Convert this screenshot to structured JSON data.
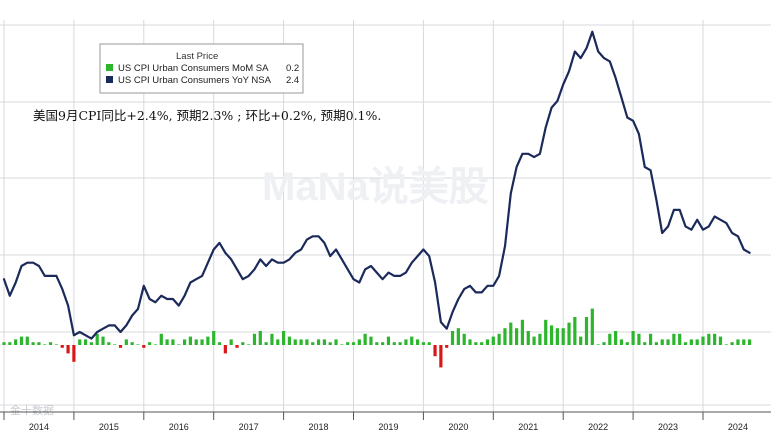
{
  "chart_data": {
    "type": "bar+line",
    "legend": {
      "title": "Last Price",
      "placement": "top-left",
      "entries": [
        {
          "label": "US CPI Urban Consumers MoM SA",
          "value": "0.2",
          "color": "#2db52d"
        },
        {
          "label": "US CPI Urban Consumers YoY NSA",
          "value": "2.4",
          "color": "#1b2a5a"
        }
      ]
    },
    "annotation": "美国9月CPI同比+2.4%, 预期2.3% ; 环比+0.2%, 预期0.1%.",
    "watermark": "MaNa说美股",
    "source_mark": "金十数据",
    "x_axis": {
      "ticks": [
        "2014",
        "2015",
        "2016",
        "2017",
        "2018",
        "2019",
        "2020",
        "2021",
        "2022",
        "2023",
        "2024"
      ]
    },
    "start_month": "2014-01",
    "grid": true,
    "colors": {
      "line": "#1b2a5a",
      "bar_pos": "#2db52d",
      "bar_neg": "#d81818",
      "grid": "#d5d9de"
    },
    "series": [
      {
        "name": "US CPI Urban Consumers YoY NSA",
        "kind": "line",
        "values": [
          1.6,
          1.1,
          1.5,
          2.0,
          2.1,
          2.1,
          2.0,
          1.7,
          1.7,
          1.7,
          1.3,
          0.8,
          -0.1,
          0.0,
          -0.1,
          -0.2,
          0.0,
          0.1,
          0.2,
          0.2,
          0.0,
          0.2,
          0.5,
          0.7,
          1.4,
          1.0,
          0.9,
          1.1,
          1.0,
          1.0,
          0.8,
          1.1,
          1.5,
          1.6,
          1.7,
          2.1,
          2.5,
          2.7,
          2.4,
          2.2,
          1.9,
          1.6,
          1.7,
          1.9,
          2.2,
          2.0,
          2.2,
          2.1,
          2.1,
          2.2,
          2.4,
          2.5,
          2.8,
          2.9,
          2.9,
          2.7,
          2.3,
          2.5,
          2.2,
          1.9,
          1.6,
          1.5,
          1.9,
          2.0,
          1.8,
          1.6,
          1.8,
          1.7,
          1.7,
          1.8,
          2.1,
          2.3,
          2.5,
          2.3,
          1.5,
          0.3,
          0.1,
          0.6,
          1.0,
          1.3,
          1.4,
          1.2,
          1.2,
          1.4,
          1.4,
          1.7,
          2.6,
          4.2,
          5.0,
          5.4,
          5.4,
          5.3,
          5.4,
          6.2,
          6.8,
          7.0,
          7.5,
          7.9,
          8.5,
          8.3,
          8.6,
          9.1,
          8.5,
          8.3,
          8.2,
          7.7,
          7.1,
          6.5,
          6.4,
          6.0,
          5.0,
          4.9,
          4.0,
          3.0,
          3.2,
          3.7,
          3.7,
          3.2,
          3.1,
          3.4,
          3.1,
          3.2,
          3.5,
          3.4,
          3.3,
          3.0,
          2.9,
          2.5,
          2.4
        ]
      },
      {
        "name": "US CPI Urban Consumers MoM SA",
        "kind": "bar",
        "values": [
          0.1,
          0.1,
          0.2,
          0.3,
          0.3,
          0.1,
          0.1,
          0.0,
          0.1,
          0.0,
          -0.1,
          -0.3,
          -0.6,
          0.2,
          0.2,
          0.1,
          0.4,
          0.3,
          0.1,
          0.0,
          -0.1,
          0.2,
          0.1,
          0.0,
          -0.1,
          0.1,
          0.0,
          0.4,
          0.2,
          0.2,
          0.0,
          0.2,
          0.3,
          0.2,
          0.2,
          0.3,
          0.5,
          0.1,
          -0.3,
          0.2,
          -0.1,
          0.1,
          0.0,
          0.4,
          0.5,
          0.1,
          0.4,
          0.2,
          0.5,
          0.3,
          0.2,
          0.2,
          0.2,
          0.1,
          0.2,
          0.2,
          0.1,
          0.2,
          0.0,
          0.1,
          0.1,
          0.2,
          0.4,
          0.3,
          0.1,
          0.1,
          0.3,
          0.1,
          0.1,
          0.2,
          0.3,
          0.2,
          0.1,
          0.1,
          -0.4,
          -0.8,
          -0.1,
          0.5,
          0.6,
          0.4,
          0.2,
          0.1,
          0.1,
          0.2,
          0.3,
          0.4,
          0.6,
          0.8,
          0.6,
          0.9,
          0.5,
          0.3,
          0.4,
          0.9,
          0.7,
          0.6,
          0.6,
          0.8,
          1.0,
          0.3,
          1.0,
          1.3,
          0.0,
          0.1,
          0.4,
          0.5,
          0.2,
          0.1,
          0.5,
          0.4,
          0.1,
          0.4,
          0.1,
          0.2,
          0.2,
          0.4,
          0.4,
          0.1,
          0.2,
          0.2,
          0.3,
          0.4,
          0.4,
          0.3,
          0.0,
          0.1,
          0.2,
          0.2,
          0.2
        ]
      }
    ]
  }
}
